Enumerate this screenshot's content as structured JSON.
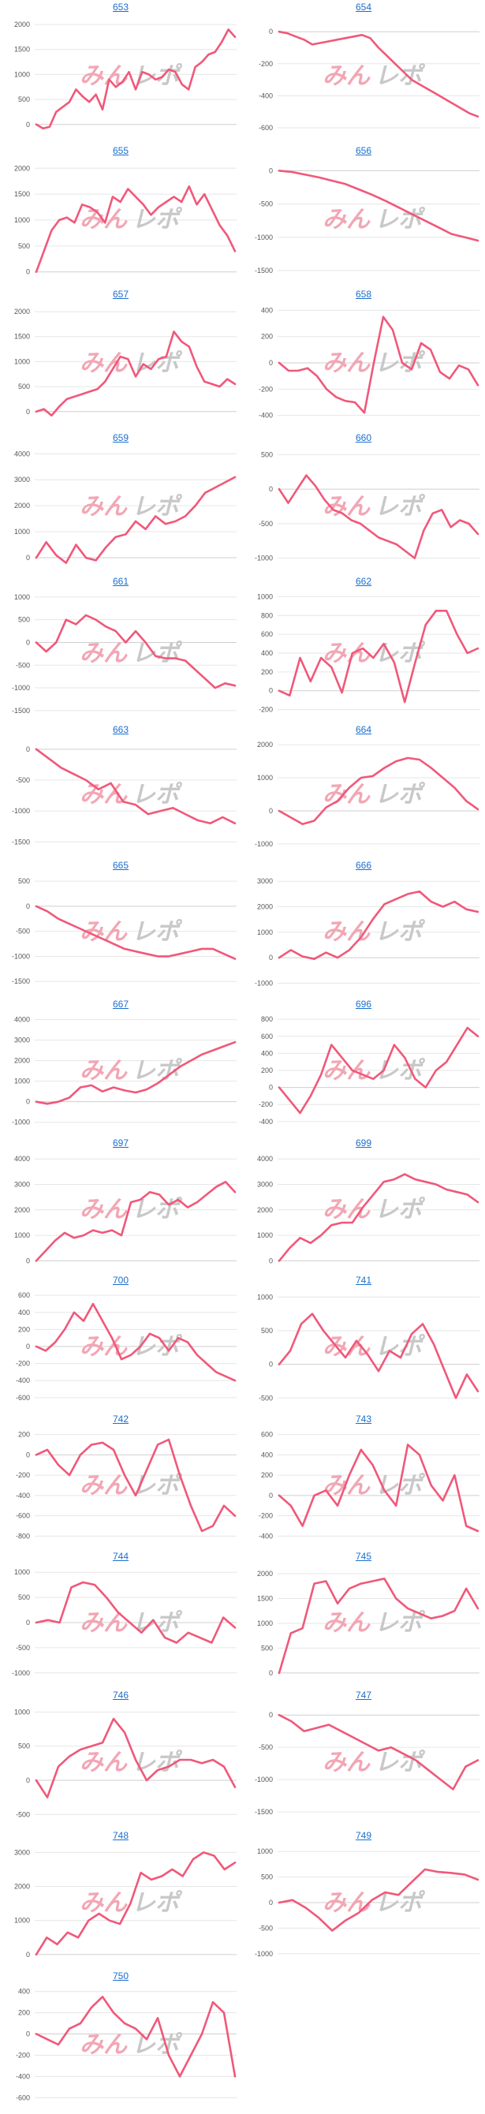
{
  "colors": {
    "line": "#f0587a",
    "grid": "#e6e6e6",
    "zero_axis": "#cfcfcf",
    "tick_text": "#555555",
    "title_link": "#1a6fd0",
    "watermark_pink": "#f2a6b4",
    "watermark_gray": "#c8c8c8"
  },
  "watermark": {
    "part1": "みん",
    "part2": "レポ"
  },
  "chart_data": [
    {
      "type": "line",
      "title": "653",
      "yticks": [
        2000,
        1500,
        1000,
        500,
        0
      ],
      "ylim": [
        -130,
        2080
      ],
      "values": [
        0,
        -80,
        -50,
        250,
        350,
        450,
        700,
        560,
        450,
        600,
        300,
        900,
        750,
        850,
        1050,
        700,
        1050,
        1000,
        900,
        950,
        1100,
        1050,
        800,
        700,
        1150,
        1250,
        1400,
        1450,
        1650,
        1900,
        1750
      ]
    },
    {
      "type": "line",
      "title": "654",
      "yticks": [
        0,
        -200,
        -400,
        -600
      ],
      "ylim": [
        -620,
        70
      ],
      "values": [
        0,
        -10,
        -30,
        -50,
        -80,
        -70,
        -60,
        -50,
        -40,
        -30,
        -20,
        -40,
        -100,
        -150,
        -200,
        -250,
        -300,
        -330,
        -360,
        -390,
        -420,
        -450,
        -480,
        -510,
        -530
      ]
    },
    {
      "type": "line",
      "title": "655",
      "yticks": [
        2000,
        1500,
        1000,
        500,
        0
      ],
      "ylim": [
        -50,
        2080
      ],
      "values": [
        0,
        400,
        800,
        1000,
        1050,
        950,
        1300,
        1250,
        1150,
        950,
        1450,
        1350,
        1600,
        1450,
        1300,
        1100,
        1250,
        1350,
        1450,
        1350,
        1650,
        1300,
        1500,
        1200,
        900,
        700,
        400
      ]
    },
    {
      "type": "line",
      "title": "656",
      "yticks": [
        0,
        -500,
        -1000,
        -1500
      ],
      "ylim": [
        -1560,
        100
      ],
      "values": [
        0,
        -20,
        -60,
        -100,
        -150,
        -200,
        -280,
        -360,
        -450,
        -550,
        -650,
        -750,
        -850,
        -950,
        -1000,
        -1050
      ]
    },
    {
      "type": "line",
      "title": "657",
      "yticks": [
        2000,
        1500,
        1000,
        500,
        0
      ],
      "ylim": [
        -130,
        2080
      ],
      "values": [
        0,
        50,
        -80,
        100,
        250,
        300,
        350,
        400,
        450,
        600,
        850,
        1100,
        1050,
        700,
        950,
        850,
        1050,
        1100,
        1600,
        1400,
        1300,
        900,
        600,
        550,
        500,
        650,
        550
      ]
    },
    {
      "type": "line",
      "title": "658",
      "yticks": [
        400,
        200,
        0,
        -200,
        -400
      ],
      "ylim": [
        -420,
        420
      ],
      "values": [
        0,
        -60,
        -60,
        -40,
        -100,
        -200,
        -260,
        -290,
        -300,
        -380,
        0,
        350,
        250,
        0,
        -50,
        150,
        100,
        -70,
        -120,
        -20,
        -50,
        -170
      ]
    },
    {
      "type": "line",
      "title": "659",
      "yticks": [
        4000,
        3000,
        2000,
        1000,
        0
      ],
      "ylim": [
        -150,
        4100
      ],
      "values": [
        0,
        600,
        100,
        -200,
        500,
        0,
        -100,
        400,
        800,
        900,
        1400,
        1100,
        1600,
        1300,
        1400,
        1600,
        2000,
        2500,
        2700,
        2900,
        3100
      ]
    },
    {
      "type": "line",
      "title": "660",
      "yticks": [
        500,
        0,
        -500,
        -1000
      ],
      "ylim": [
        -1050,
        550
      ],
      "values": [
        0,
        -200,
        0,
        200,
        50,
        -150,
        -300,
        -350,
        -450,
        -500,
        -600,
        -700,
        -750,
        -800,
        -900,
        -1000,
        -600,
        -350,
        -300,
        -550,
        -450,
        -500,
        -650
      ]
    },
    {
      "type": "line",
      "title": "661",
      "yticks": [
        1000,
        500,
        0,
        -500,
        -1000,
        -1500
      ],
      "ylim": [
        -1520,
        1050
      ],
      "values": [
        0,
        -200,
        0,
        500,
        400,
        600,
        500,
        350,
        250,
        0,
        250,
        0,
        -300,
        -350,
        -350,
        -400,
        -600,
        -800,
        -1000,
        -900,
        -950
      ]
    },
    {
      "type": "line",
      "title": "662",
      "yticks": [
        1000,
        800,
        600,
        400,
        200,
        0,
        -200
      ],
      "ylim": [
        -220,
        1020
      ],
      "values": [
        0,
        -50,
        350,
        100,
        350,
        250,
        -20,
        400,
        450,
        350,
        500,
        300,
        -120,
        300,
        700,
        850,
        850,
        600,
        400,
        450
      ]
    },
    {
      "type": "line",
      "title": "663",
      "yticks": [
        0,
        -500,
        -1000,
        -1500
      ],
      "ylim": [
        -1560,
        100
      ],
      "values": [
        0,
        -150,
        -300,
        -400,
        -500,
        -650,
        -550,
        -850,
        -900,
        -1050,
        -1000,
        -950,
        -1050,
        -1150,
        -1200,
        -1100,
        -1200
      ]
    },
    {
      "type": "line",
      "title": "664",
      "yticks": [
        2000,
        1000,
        0,
        -1000
      ],
      "ylim": [
        -1050,
        2050
      ],
      "values": [
        0,
        -200,
        -400,
        -300,
        100,
        300,
        700,
        1000,
        1050,
        1300,
        1500,
        1600,
        1550,
        1300,
        1000,
        700,
        300,
        50
      ]
    },
    {
      "type": "line",
      "title": "665",
      "yticks": [
        500,
        0,
        -500,
        -1000,
        -1500
      ],
      "ylim": [
        -1560,
        550
      ],
      "values": [
        0,
        -100,
        -250,
        -350,
        -450,
        -550,
        -650,
        -750,
        -850,
        -900,
        -950,
        -1000,
        -1000,
        -950,
        -900,
        -850,
        -850,
        -950,
        -1050
      ]
    },
    {
      "type": "line",
      "title": "666",
      "yticks": [
        3000,
        2000,
        1000,
        0,
        -1000
      ],
      "ylim": [
        -1050,
        3100
      ],
      "values": [
        0,
        300,
        50,
        -50,
        200,
        0,
        300,
        800,
        1500,
        2100,
        2300,
        2500,
        2600,
        2200,
        2000,
        2200,
        1900,
        1800
      ]
    },
    {
      "type": "line",
      "title": "667",
      "yticks": [
        4000,
        3000,
        2000,
        1000,
        0,
        -1000
      ],
      "ylim": [
        -1050,
        4100
      ],
      "values": [
        0,
        -100,
        0,
        200,
        700,
        800,
        500,
        700,
        550,
        450,
        600,
        900,
        1300,
        1700,
        2000,
        2300,
        2500,
        2700,
        2900
      ]
    },
    {
      "type": "line",
      "title": "696",
      "yticks": [
        800,
        600,
        400,
        200,
        0,
        -200,
        -400
      ],
      "ylim": [
        -420,
        820
      ],
      "values": [
        0,
        -150,
        -300,
        -100,
        150,
        500,
        350,
        200,
        150,
        100,
        200,
        500,
        350,
        100,
        0,
        200,
        300,
        500,
        700,
        600
      ]
    },
    {
      "type": "line",
      "title": "697",
      "yticks": [
        4000,
        3000,
        2000,
        1000,
        0
      ],
      "ylim": [
        -50,
        4100
      ],
      "values": [
        0,
        400,
        800,
        1100,
        900,
        1000,
        1200,
        1100,
        1200,
        1000,
        2300,
        2400,
        2700,
        2600,
        2200,
        2400,
        2100,
        2300,
        2600,
        2900,
        3100,
        2700
      ]
    },
    {
      "type": "line",
      "title": "699",
      "yticks": [
        4000,
        3000,
        2000,
        1000,
        0
      ],
      "ylim": [
        -50,
        4100
      ],
      "values": [
        0,
        500,
        900,
        700,
        1000,
        1400,
        1500,
        1500,
        2100,
        2600,
        3100,
        3200,
        3400,
        3200,
        3100,
        3000,
        2800,
        2700,
        2600,
        2300
      ]
    },
    {
      "type": "line",
      "title": "700",
      "yticks": [
        600,
        400,
        200,
        0,
        -200,
        -400,
        -600
      ],
      "ylim": [
        -620,
        620
      ],
      "values": [
        0,
        -50,
        50,
        200,
        400,
        300,
        500,
        300,
        100,
        -150,
        -100,
        0,
        150,
        100,
        -50,
        100,
        50,
        -100,
        -200,
        -300,
        -350,
        -400
      ]
    },
    {
      "type": "line",
      "title": "741",
      "yticks": [
        1000,
        500,
        0,
        -500
      ],
      "ylim": [
        -520,
        1050
      ],
      "values": [
        0,
        200,
        600,
        750,
        500,
        300,
        100,
        350,
        150,
        -100,
        200,
        100,
        450,
        600,
        300,
        -100,
        -500,
        -150,
        -400
      ]
    },
    {
      "type": "line",
      "title": "742",
      "yticks": [
        200,
        0,
        -200,
        -400,
        -600,
        -800
      ],
      "ylim": [
        -820,
        220
      ],
      "values": [
        0,
        50,
        -100,
        -200,
        0,
        100,
        120,
        50,
        -200,
        -400,
        -150,
        100,
        150,
        -200,
        -500,
        -750,
        -700,
        -500,
        -600
      ]
    },
    {
      "type": "line",
      "title": "743",
      "yticks": [
        600,
        400,
        200,
        0,
        -200,
        -400
      ],
      "ylim": [
        -420,
        620
      ],
      "values": [
        0,
        -100,
        -300,
        0,
        50,
        -100,
        200,
        450,
        300,
        50,
        -100,
        500,
        400,
        100,
        -50,
        200,
        -300,
        -350
      ]
    },
    {
      "type": "line",
      "title": "744",
      "yticks": [
        1000,
        500,
        0,
        -500,
        -1000
      ],
      "ylim": [
        -1050,
        1050
      ],
      "values": [
        0,
        50,
        0,
        700,
        800,
        750,
        500,
        200,
        0,
        -200,
        50,
        -300,
        -400,
        -200,
        -300,
        -400,
        100,
        -100
      ]
    },
    {
      "type": "line",
      "title": "745",
      "yticks": [
        2000,
        1500,
        1000,
        500,
        0
      ],
      "ylim": [
        -50,
        2080
      ],
      "values": [
        0,
        800,
        900,
        1800,
        1850,
        1400,
        1700,
        1800,
        1850,
        1900,
        1500,
        1300,
        1200,
        1100,
        1150,
        1250,
        1700,
        1300
      ]
    },
    {
      "type": "line",
      "title": "746",
      "yticks": [
        1000,
        500,
        0,
        -500
      ],
      "ylim": [
        -520,
        1050
      ],
      "values": [
        0,
        -250,
        200,
        350,
        450,
        500,
        550,
        900,
        700,
        300,
        0,
        150,
        200,
        300,
        300,
        250,
        300,
        200,
        -100
      ]
    },
    {
      "type": "line",
      "title": "747",
      "yticks": [
        0,
        -500,
        -1000,
        -1500
      ],
      "ylim": [
        -1560,
        100
      ],
      "values": [
        0,
        -100,
        -250,
        -200,
        -150,
        -250,
        -350,
        -450,
        -550,
        -500,
        -600,
        -700,
        -850,
        -1000,
        -1150,
        -800,
        -700
      ]
    },
    {
      "type": "line",
      "title": "748",
      "yticks": [
        3000,
        2000,
        1000,
        0
      ],
      "ylim": [
        -50,
        3100
      ],
      "values": [
        0,
        500,
        300,
        650,
        500,
        1000,
        1200,
        1000,
        900,
        1500,
        2400,
        2200,
        2300,
        2500,
        2300,
        2800,
        3000,
        2900,
        2500,
        2700
      ]
    },
    {
      "type": "line",
      "title": "749",
      "yticks": [
        1000,
        500,
        0,
        -500,
        -1000
      ],
      "ylim": [
        -1050,
        1050
      ],
      "values": [
        0,
        50,
        -100,
        -300,
        -550,
        -350,
        -200,
        50,
        200,
        150,
        400,
        650,
        600,
        580,
        550,
        450
      ]
    },
    {
      "type": "line",
      "title": "750",
      "yticks": [
        400,
        200,
        0,
        -200,
        -400,
        -600
      ],
      "ylim": [
        -620,
        420
      ],
      "values": [
        0,
        -50,
        -100,
        50,
        100,
        250,
        350,
        200,
        100,
        50,
        -50,
        150,
        -200,
        -400,
        -200,
        0,
        300,
        200,
        -400
      ]
    }
  ]
}
